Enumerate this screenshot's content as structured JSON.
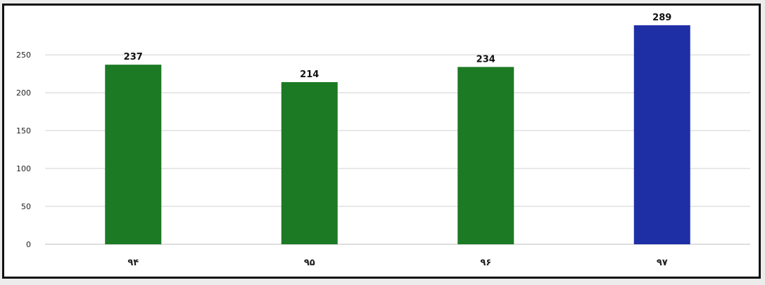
{
  "chart_data": {
    "type": "bar",
    "title": "",
    "xlabel": "",
    "ylabel": "",
    "categories": [
      "۹۴",
      "۹۵",
      "۹۶",
      "۹۷"
    ],
    "values": [
      237,
      214,
      234,
      289
    ],
    "data_labels": [
      "237",
      "214",
      "234",
      "289"
    ],
    "bar_colors": [
      "#1c7a24",
      "#1c7a24",
      "#1c7a24",
      "#1e2fa6"
    ],
    "ylim": [
      0,
      289
    ],
    "yticks": [
      0,
      50,
      100,
      150,
      200,
      250
    ],
    "grid": true,
    "legend": "none"
  }
}
